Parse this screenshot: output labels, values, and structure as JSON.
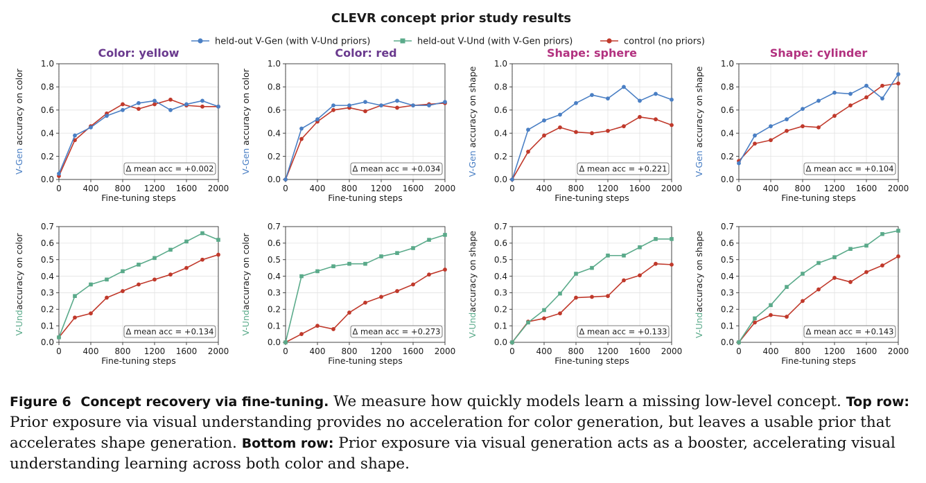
{
  "figure": {
    "title": "CLEVR concept prior study results",
    "legend": [
      {
        "label": "held-out V-Gen (with V-Und priors)",
        "color": "#4a7fc4",
        "marker": "circle"
      },
      {
        "label": "held-out V-Und (with V-Gen priors)",
        "color": "#5aaa8a",
        "marker": "square"
      },
      {
        "label": "control (no priors)",
        "color": "#c0392b",
        "marker": "circle"
      }
    ],
    "colors": {
      "vgen": "#4a7fc4",
      "vund": "#5aaa8a",
      "control": "#c0392b",
      "title_color_concept": "#6a3a8e",
      "title_shape_concept": "#b2317f"
    }
  },
  "chart_data": [
    {
      "type": "line",
      "title": "Color: yellow",
      "row": "top",
      "col": 0,
      "xlabel": "Fine-tuning steps",
      "ylabel_prefix": "V-Gen",
      "ylabel_suffix": " accuracy on color",
      "ylim": [
        0,
        1.0
      ],
      "yticks": [
        "0.0",
        "0.2",
        "0.4",
        "0.6",
        "0.8",
        "1.0"
      ],
      "xticks": [
        "0",
        "400",
        "800",
        "1200",
        "1600",
        "2000"
      ],
      "delta": "Δ mean acc = +0.002",
      "grid": true,
      "x": [
        0,
        200,
        400,
        600,
        800,
        1000,
        1200,
        1400,
        1600,
        1800,
        2000
      ],
      "series": [
        {
          "name": "held-out V-Gen (with V-Und priors)",
          "values": [
            0.05,
            0.38,
            0.45,
            0.55,
            0.6,
            0.66,
            0.68,
            0.6,
            0.65,
            0.68,
            0.63
          ]
        },
        {
          "name": "control (no priors)",
          "values": [
            0.03,
            0.34,
            0.46,
            0.57,
            0.65,
            0.61,
            0.65,
            0.69,
            0.64,
            0.63,
            0.63
          ]
        }
      ]
    },
    {
      "type": "line",
      "title": "Color: red",
      "row": "top",
      "col": 1,
      "xlabel": "Fine-tuning steps",
      "ylabel_prefix": "V-Gen",
      "ylabel_suffix": " accuracy on color",
      "ylim": [
        0,
        1.0
      ],
      "yticks": [
        "0.0",
        "0.2",
        "0.4",
        "0.6",
        "0.8",
        "1.0"
      ],
      "xticks": [
        "0",
        "400",
        "800",
        "1200",
        "1600",
        "2000"
      ],
      "delta": "Δ mean acc = +0.034",
      "grid": true,
      "x": [
        0,
        200,
        400,
        600,
        800,
        1000,
        1200,
        1400,
        1600,
        1800,
        2000
      ],
      "series": [
        {
          "name": "held-out V-Gen (with V-Und priors)",
          "values": [
            0.0,
            0.44,
            0.52,
            0.64,
            0.64,
            0.67,
            0.64,
            0.68,
            0.64,
            0.64,
            0.67
          ]
        },
        {
          "name": "control (no priors)",
          "values": [
            0.0,
            0.35,
            0.5,
            0.6,
            0.62,
            0.59,
            0.64,
            0.62,
            0.64,
            0.65,
            0.66
          ]
        }
      ]
    },
    {
      "type": "line",
      "title": "Shape: sphere",
      "row": "top",
      "col": 2,
      "xlabel": "Fine-tuning steps",
      "ylabel_prefix": "V-Gen",
      "ylabel_suffix": " accuracy on shape",
      "ylim": [
        0,
        1.0
      ],
      "yticks": [
        "0.0",
        "0.2",
        "0.4",
        "0.6",
        "0.8",
        "1.0"
      ],
      "xticks": [
        "0",
        "400",
        "800",
        "1200",
        "1600",
        "2000"
      ],
      "delta": "Δ mean acc = +0.221",
      "grid": true,
      "x": [
        0,
        200,
        400,
        600,
        800,
        1000,
        1200,
        1400,
        1600,
        1800,
        2000
      ],
      "series": [
        {
          "name": "held-out V-Gen (with V-Und priors)",
          "values": [
            0.0,
            0.43,
            0.51,
            0.56,
            0.66,
            0.73,
            0.7,
            0.8,
            0.68,
            0.74,
            0.69
          ]
        },
        {
          "name": "control (no priors)",
          "values": [
            0.0,
            0.24,
            0.38,
            0.45,
            0.41,
            0.4,
            0.42,
            0.46,
            0.54,
            0.52,
            0.47
          ]
        }
      ]
    },
    {
      "type": "line",
      "title": "Shape: cylinder",
      "row": "top",
      "col": 3,
      "xlabel": "Fine-tuning steps",
      "ylabel_prefix": "V-Gen",
      "ylabel_suffix": " accuracy on shape",
      "ylim": [
        0,
        1.0
      ],
      "yticks": [
        "0.0",
        "0.2",
        "0.4",
        "0.6",
        "0.8",
        "1.0"
      ],
      "xticks": [
        "0",
        "400",
        "800",
        "1200",
        "1600",
        "2000"
      ],
      "delta": "Δ mean acc = +0.104",
      "grid": true,
      "x": [
        0,
        200,
        400,
        600,
        800,
        1000,
        1200,
        1400,
        1600,
        1800,
        2000
      ],
      "series": [
        {
          "name": "held-out V-Gen (with V-Und priors)",
          "values": [
            0.14,
            0.38,
            0.46,
            0.52,
            0.61,
            0.68,
            0.75,
            0.74,
            0.81,
            0.7,
            0.91
          ]
        },
        {
          "name": "control (no priors)",
          "values": [
            0.16,
            0.31,
            0.34,
            0.42,
            0.46,
            0.45,
            0.55,
            0.64,
            0.71,
            0.81,
            0.83
          ]
        }
      ]
    },
    {
      "type": "line",
      "row": "bottom",
      "col": 0,
      "xlabel": "Fine-tuning steps",
      "ylabel_prefix": "V-Und",
      "ylabel_suffix": "accuracy on color",
      "ylim": [
        0,
        0.7
      ],
      "yticks": [
        "0.0",
        "0.1",
        "0.2",
        "0.3",
        "0.4",
        "0.5",
        "0.6",
        "0.7"
      ],
      "xticks": [
        "0",
        "400",
        "800",
        "1200",
        "1600",
        "2000"
      ],
      "delta": "Δ mean acc = +0.134",
      "grid": true,
      "x": [
        0,
        200,
        400,
        600,
        800,
        1000,
        1200,
        1400,
        1600,
        1800,
        2000
      ],
      "series": [
        {
          "name": "held-out V-Und (with V-Gen priors)",
          "values": [
            0.03,
            0.28,
            0.35,
            0.38,
            0.43,
            0.47,
            0.51,
            0.56,
            0.61,
            0.66,
            0.62
          ]
        },
        {
          "name": "control (no priors)",
          "values": [
            0.03,
            0.15,
            0.175,
            0.27,
            0.31,
            0.35,
            0.38,
            0.41,
            0.45,
            0.5,
            0.53
          ]
        }
      ]
    },
    {
      "type": "line",
      "row": "bottom",
      "col": 1,
      "xlabel": "Fine-tuning steps",
      "ylabel_prefix": "V-Und",
      "ylabel_suffix": "accuracy on color",
      "ylim": [
        0,
        0.7
      ],
      "yticks": [
        "0.0",
        "0.1",
        "0.2",
        "0.3",
        "0.4",
        "0.5",
        "0.6",
        "0.7"
      ],
      "xticks": [
        "0",
        "400",
        "800",
        "1200",
        "1600",
        "2000"
      ],
      "delta": "Δ mean acc = +0.273",
      "grid": true,
      "x": [
        0,
        200,
        400,
        600,
        800,
        1000,
        1200,
        1400,
        1600,
        1800,
        2000
      ],
      "series": [
        {
          "name": "held-out V-Und (with V-Gen priors)",
          "values": [
            0.0,
            0.4,
            0.43,
            0.46,
            0.475,
            0.475,
            0.52,
            0.54,
            0.57,
            0.62,
            0.65
          ]
        },
        {
          "name": "control (no priors)",
          "values": [
            0.0,
            0.05,
            0.1,
            0.08,
            0.18,
            0.24,
            0.275,
            0.31,
            0.35,
            0.41,
            0.44
          ]
        }
      ]
    },
    {
      "type": "line",
      "row": "bottom",
      "col": 2,
      "xlabel": "Fine-tuning steps",
      "ylabel_prefix": "V-Und",
      "ylabel_suffix": "accuracy on shape",
      "ylim": [
        0,
        0.7
      ],
      "yticks": [
        "0.0",
        "0.1",
        "0.2",
        "0.3",
        "0.4",
        "0.5",
        "0.6",
        "0.7"
      ],
      "xticks": [
        "0",
        "400",
        "800",
        "1200",
        "1600",
        "2000"
      ],
      "delta": "Δ mean acc = +0.133",
      "grid": true,
      "x": [
        0,
        200,
        400,
        600,
        800,
        1000,
        1200,
        1400,
        1600,
        1800,
        2000
      ],
      "series": [
        {
          "name": "held-out V-Und (with V-Gen priors)",
          "values": [
            0.0,
            0.12,
            0.195,
            0.295,
            0.415,
            0.45,
            0.525,
            0.525,
            0.575,
            0.625,
            0.625
          ]
        },
        {
          "name": "control (no priors)",
          "values": [
            0.0,
            0.125,
            0.145,
            0.175,
            0.27,
            0.275,
            0.28,
            0.375,
            0.405,
            0.475,
            0.47
          ]
        }
      ]
    },
    {
      "type": "line",
      "row": "bottom",
      "col": 3,
      "xlabel": "Fine-tuning steps",
      "ylabel_prefix": "V-Und",
      "ylabel_suffix": "accuracy on shape",
      "ylim": [
        0,
        0.7
      ],
      "yticks": [
        "0.0",
        "0.1",
        "0.2",
        "0.3",
        "0.4",
        "0.5",
        "0.6",
        "0.7"
      ],
      "xticks": [
        "0",
        "400",
        "800",
        "1200",
        "1600",
        "2000"
      ],
      "delta": "Δ mean acc = +0.143",
      "grid": true,
      "x": [
        0,
        200,
        400,
        600,
        800,
        1000,
        1200,
        1400,
        1600,
        1800,
        2000
      ],
      "series": [
        {
          "name": "held-out V-Und (with V-Gen priors)",
          "values": [
            0.0,
            0.145,
            0.225,
            0.335,
            0.415,
            0.48,
            0.515,
            0.565,
            0.585,
            0.655,
            0.675
          ]
        },
        {
          "name": "control (no priors)",
          "values": [
            0.0,
            0.12,
            0.165,
            0.155,
            0.25,
            0.32,
            0.39,
            0.365,
            0.425,
            0.465,
            0.52
          ]
        }
      ]
    }
  ],
  "caption": {
    "label": "Figure 6",
    "title": "Concept recovery via fine-tuning.",
    "text1": " We measure how quickly models learn a missing low-level concept. ",
    "top_label": "Top row:",
    "text2": " Prior exposure via visual understanding provides no acceleration for color generation, but leaves a usable prior that accelerates shape generation. ",
    "bottom_label": "Bottom row:",
    "text3": " Prior exposure via visual generation acts as a booster, accelerating visual understanding learning across both color and shape."
  }
}
